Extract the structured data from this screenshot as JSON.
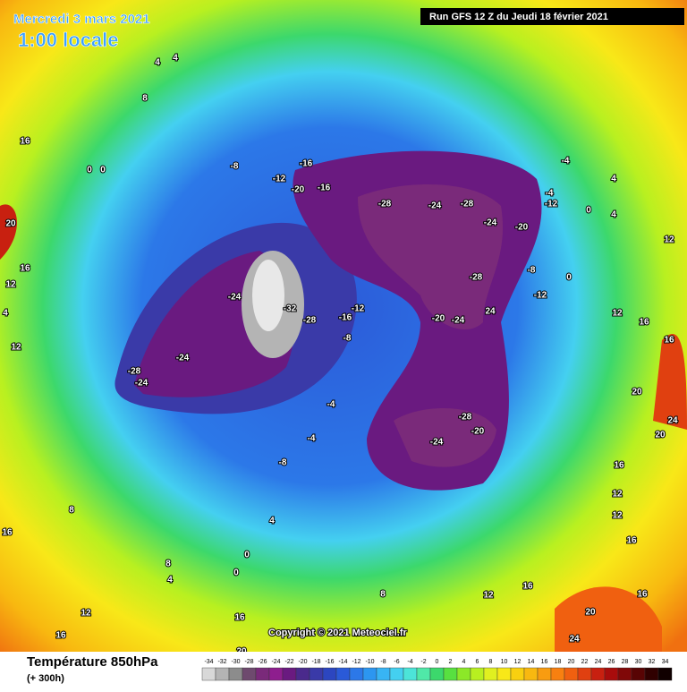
{
  "header": {
    "date": "Mercredi 3 mars 2021",
    "time": "1:00 locale",
    "run": "Run GFS 12 Z du Jeudi 18 février 2021"
  },
  "copyright": "Copyright © 2021 Meteociel.fr",
  "footer": {
    "title": "Température 850hPa",
    "lead": "(+ 300h)"
  },
  "legend": {
    "ticks": [
      -34,
      -32,
      -30,
      -28,
      -26,
      -24,
      -22,
      -20,
      -18,
      -16,
      -14,
      -12,
      -10,
      -8,
      -6,
      -4,
      -2,
      0,
      2,
      4,
      6,
      8,
      10,
      12,
      14,
      16,
      18,
      20,
      22,
      24,
      26,
      28,
      30,
      32,
      34
    ],
    "colors": [
      "#d8d8d8",
      "#b4b4b4",
      "#8c8c8c",
      "#6e4a6e",
      "#7a2a7a",
      "#8e1e8e",
      "#6a1a80",
      "#4a2a8c",
      "#3a3aa8",
      "#2c46c0",
      "#2a5ad8",
      "#2c78e8",
      "#2c96f0",
      "#38b4f4",
      "#44d0f0",
      "#4ce4d8",
      "#50e8a8",
      "#3cd86c",
      "#58e040",
      "#8ce828",
      "#b8f020",
      "#e0f020",
      "#f8e818",
      "#f8d010",
      "#f8b810",
      "#f89c10",
      "#f88010",
      "#f06010",
      "#e04010",
      "#c82010",
      "#a80c0c",
      "#800808",
      "#580404",
      "#300000",
      "#100000"
    ]
  },
  "map_labels": [
    16,
    4,
    4,
    8,
    16,
    20,
    16,
    8,
    4,
    12,
    12,
    16,
    20,
    0,
    0,
    -8,
    -12,
    -16,
    -20,
    -16,
    -24,
    -28,
    -24,
    -28,
    -24,
    -20,
    -12,
    -4,
    0,
    4,
    12,
    16,
    -28,
    -24,
    -20,
    -12,
    -8,
    -4,
    0,
    4,
    12,
    16,
    24,
    -24,
    -28,
    -20,
    -28,
    -24,
    -4,
    -8,
    -4,
    0,
    4,
    8,
    12,
    16,
    20,
    24,
    -24,
    -32,
    -28,
    -16,
    -12,
    -8,
    16,
    12,
    8,
    4,
    0,
    20,
    16,
    12,
    16,
    24,
    20,
    16,
    12
  ]
}
